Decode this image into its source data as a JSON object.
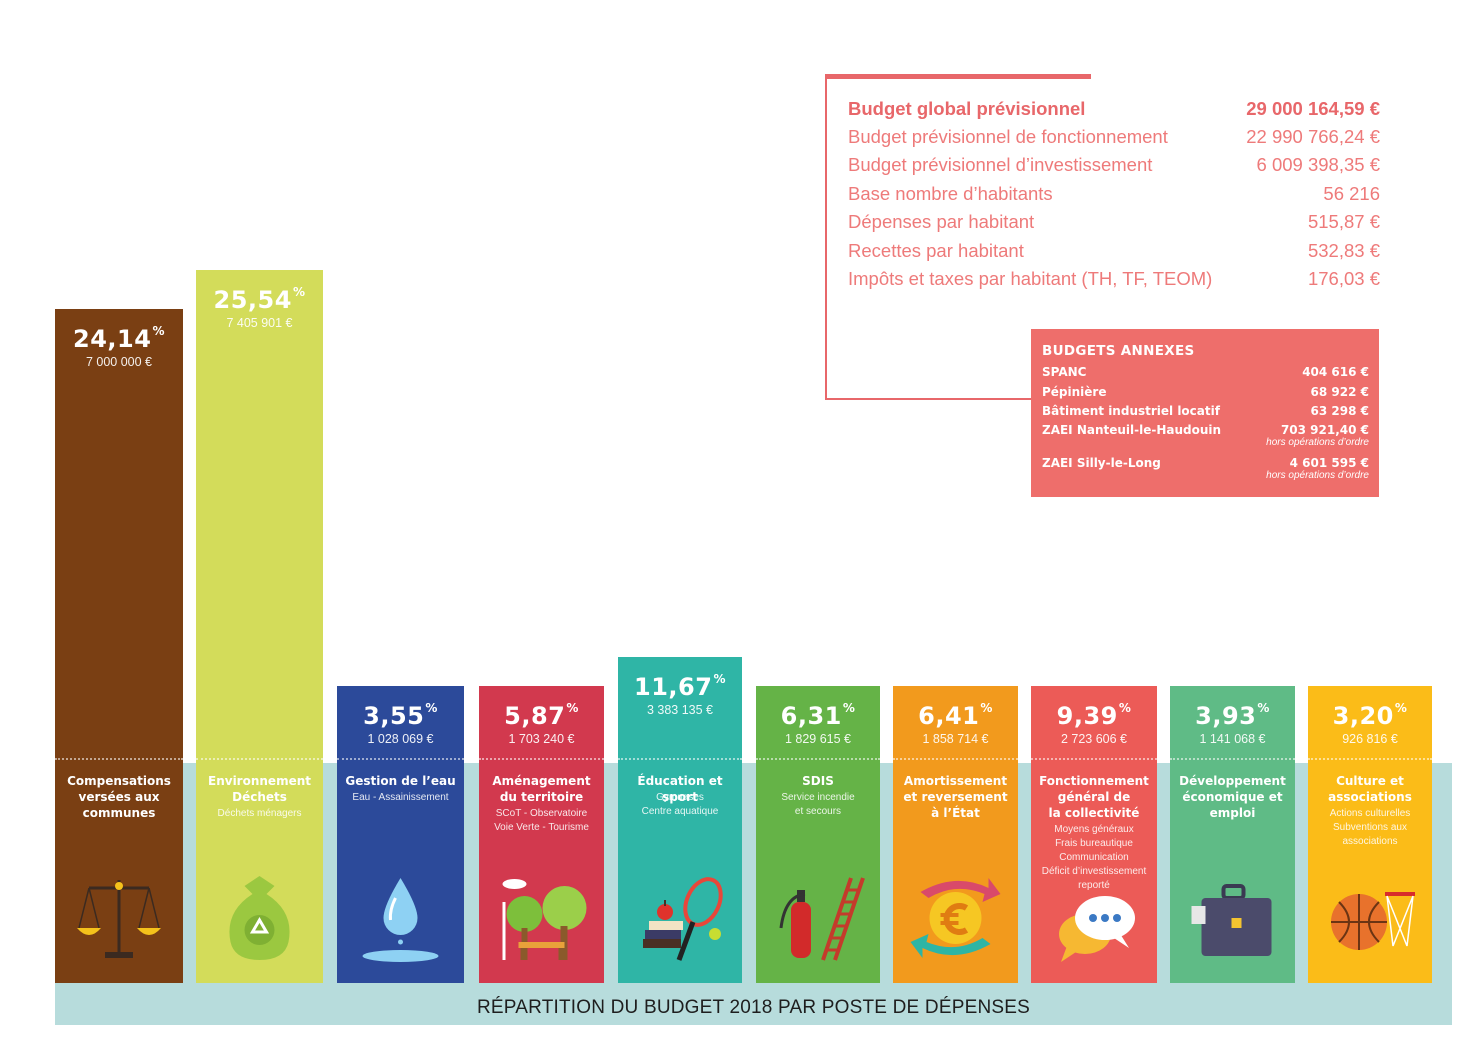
{
  "colors": {
    "band": "#b7dcdc",
    "accent": "#e8676a"
  },
  "footer": "RÉPARTITION DU BUDGET 2018 PAR POSTE DE DÉPENSES",
  "summary": {
    "rows": [
      {
        "label": "Budget global prévisionnel",
        "value": "29 000 164,59 €"
      },
      {
        "label": "Budget prévisionnel de fonctionnement",
        "value": "22 990 766,24 €"
      },
      {
        "label": "Budget prévisionnel d’investissement",
        "value": "6 009 398,35 €"
      },
      {
        "label": "Base nombre d’habitants",
        "value": "56 216"
      },
      {
        "label": "Dépenses par habitant",
        "value": "515,87 €"
      },
      {
        "label": "Recettes par habitant",
        "value": "532,83 €"
      },
      {
        "label": "Impôts et taxes par habitant (TH, TF, TEOM)",
        "value": "176,03 €"
      }
    ]
  },
  "annexes": {
    "title": "BUDGETS ANNEXES",
    "rows": [
      {
        "label": "SPANC",
        "value": "404 616 €",
        "note": ""
      },
      {
        "label": "Pépinière",
        "value": "68 922 €",
        "note": ""
      },
      {
        "label": "Bâtiment industriel locatif",
        "value": "63 298 €",
        "note": ""
      },
      {
        "label": "ZAEI Nanteuil-le-Haudouin",
        "value": "703 921,40 €",
        "note": "hors opérations d’ordre"
      },
      {
        "label": "ZAEI Silly-le-Long",
        "value": "4 601 595 €",
        "note": "hors opérations d’ordre"
      }
    ]
  },
  "chart_data": {
    "type": "bar",
    "categories": [
      "Compensations versées aux communes",
      "Environnement Déchets",
      "Gestion de l'eau",
      "Aménagement du territoire",
      "Éducation et sport",
      "SDIS",
      "Amortissement et reversement à l'État",
      "Fonctionnement général de la collectivité",
      "Développement économique et emploi",
      "Culture et associations"
    ],
    "values": [
      24.14,
      25.54,
      3.55,
      5.87,
      11.67,
      6.31,
      6.41,
      9.39,
      3.93,
      3.2
    ],
    "value_labels": [
      "24,14",
      "25,54",
      "3,55",
      "5,87",
      "11,67",
      "6,31",
      "6,41",
      "9,39",
      "3,93",
      "3,20"
    ],
    "unit": "%",
    "amounts": [
      "7 000 000 €",
      "7 405 901 €",
      "1 028 069 €",
      "1 703 240 €",
      "3 383 135 €",
      "1 829 615 €",
      "1 858 714 €",
      "2 723 606 €",
      "1 141 068 €",
      "926 816 €"
    ],
    "names": [
      "Compensations\nversées aux\ncommunes",
      "Environnement\nDéchets",
      "Gestion de l’eau",
      "Aménagement\ndu territoire",
      "Éducation et sport",
      "SDIS",
      "Amortissement\net reversement\nà l’État",
      "Fonctionnement\ngénéral de\nla collectivité",
      "Développement\néconomique et\nemploi",
      "Culture et\nassociations"
    ],
    "subtitles": [
      "",
      "Déchets ménagers",
      "Eau - Assainissement",
      "SCoT - Observatoire\nVoie Verte - Tourisme",
      "Gymnases\nCentre aquatique",
      "Service incendie\net secours",
      "",
      "Moyens généraux\nFrais bureautique\nCommunication\nDéficit d’investissement\nreporté",
      "",
      "Actions culturelles\nSubventions aux\nassociations"
    ],
    "colors": [
      "#7a3f13",
      "#d3dc5a",
      "#2c4a9a",
      "#d2394e",
      "#2fb5a6",
      "#65b347",
      "#f29a1d",
      "#ec5b57",
      "#5fbb86",
      "#fbbc18"
    ],
    "icons": [
      "scales-icon",
      "recycling-bag-icon",
      "water-drop-icon",
      "park-icon",
      "sport-icon",
      "fire-extinguisher-ladder-icon",
      "euro-arrows-icon",
      "speech-bubble-icon",
      "briefcase-icon",
      "basketball-icon"
    ]
  }
}
